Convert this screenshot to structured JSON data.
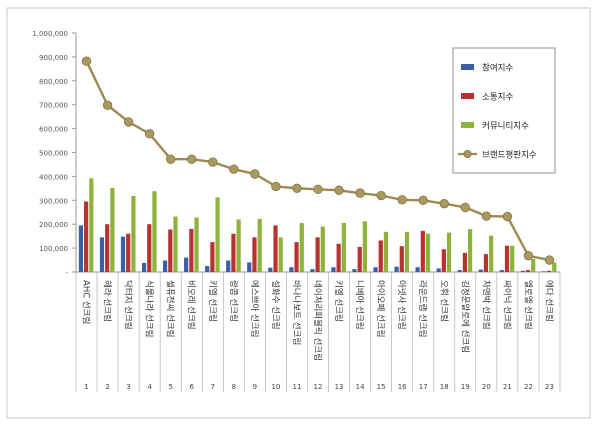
{
  "chart_data": {
    "type": "bar",
    "ylim": [
      0,
      1000000
    ],
    "y_ticks": [
      "-",
      "100,000",
      "200,000",
      "300,000",
      "400,000",
      "500,000",
      "600,000",
      "700,000",
      "800,000",
      "900,000",
      "1,000,000"
    ],
    "grid": false,
    "legend_position": "top-right",
    "categories": [
      "AHC 선크림",
      "헤라 선크림",
      "닥터지 선크림",
      "식물나라 선크림",
      "셀퓨전씨 선크림",
      "비오레 선크림",
      "키엘 선크림",
      "랑콤 선크림",
      "에스쁘아 선크림",
      "설화수 선크림",
      "바나나보트 선크림",
      "네이처리퍼블릭 선크림",
      "키엘 선크림",
      "니베아 선크림",
      "아이오페 선크림",
      "아넷사 선크림",
      "라운드랩 선크림",
      "오휘 선크림",
      "김정문알로에 선크림",
      "차앤박 선크림",
      "싸이닉 선크림",
      "엘로엘 선크림",
      "에다 선크림"
    ],
    "ranks": [
      "1",
      "2",
      "3",
      "4",
      "5",
      "6",
      "7",
      "8",
      "9",
      "10",
      "11",
      "12",
      "13",
      "14",
      "15",
      "16",
      "17",
      "18",
      "19",
      "20",
      "21",
      "22",
      "23"
    ],
    "series": [
      {
        "name": "참여지수",
        "kind": "bar",
        "color": "#3a5fa8",
        "values": [
          195000,
          145000,
          148000,
          38000,
          48000,
          60000,
          25000,
          48000,
          40000,
          18000,
          20000,
          12000,
          20000,
          12000,
          20000,
          22000,
          20000,
          15000,
          8000,
          10000,
          8000,
          5000,
          3000
        ]
      },
      {
        "name": "소통지수",
        "kind": "bar",
        "color": "#b83230",
        "values": [
          295000,
          200000,
          160000,
          200000,
          178000,
          180000,
          125000,
          160000,
          145000,
          195000,
          125000,
          145000,
          118000,
          105000,
          132000,
          108000,
          172000,
          95000,
          80000,
          75000,
          110000,
          8000,
          5000
        ]
      },
      {
        "name": "커뮤니티지수",
        "kind": "bar",
        "color": "#8db33c",
        "values": [
          392000,
          352000,
          318000,
          338000,
          232000,
          228000,
          312000,
          220000,
          222000,
          145000,
          205000,
          190000,
          205000,
          212000,
          168000,
          168000,
          160000,
          165000,
          180000,
          152000,
          110000,
          55000,
          40000
        ]
      },
      {
        "name": "브랜드평판지수",
        "kind": "line",
        "color": "#9c8b52",
        "values": [
          882000,
          698000,
          628000,
          578000,
          472000,
          472000,
          460000,
          430000,
          410000,
          358000,
          350000,
          346000,
          342000,
          330000,
          320000,
          302000,
          300000,
          286000,
          270000,
          234000,
          232000,
          68000,
          50000
        ]
      }
    ]
  }
}
